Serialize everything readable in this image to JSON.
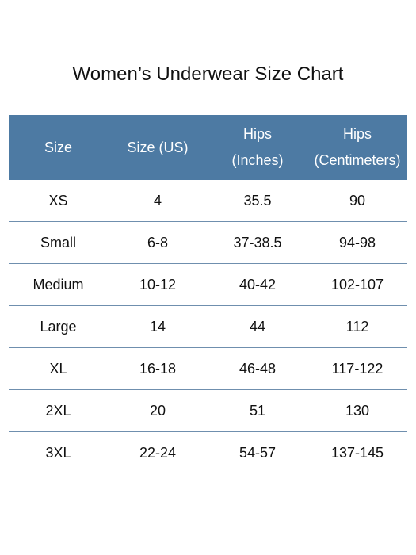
{
  "title": "Women’s Underwear Size Chart",
  "header": {
    "size": "Size",
    "size_us": "Size (US)",
    "hips_in_line1": "Hips",
    "hips_in_line2": "(Inches)",
    "hips_cm_line1": "Hips",
    "hips_cm_line2": "(Centimeters)"
  },
  "rows": [
    {
      "size": "XS",
      "us": "4",
      "inches": "35.5",
      "cm": "90"
    },
    {
      "size": "Small",
      "us": "6-8",
      "inches": "37-38.5",
      "cm": "94-98"
    },
    {
      "size": "Medium",
      "us": "10-12",
      "inches": "40-42",
      "cm": "102-107"
    },
    {
      "size": "Large",
      "us": "14",
      "inches": "44",
      "cm": "112"
    },
    {
      "size": "XL",
      "us": "16-18",
      "inches": "46-48",
      "cm": "117-122"
    },
    {
      "size": "2XL",
      "us": "20",
      "inches": "51",
      "cm": "130"
    },
    {
      "size": "3XL",
      "us": "22-24",
      "inches": "54-57",
      "cm": "137-145"
    }
  ],
  "colors": {
    "header_bg": "#4d7aa3",
    "header_text": "#ffffff",
    "divider": "#6f8fae"
  }
}
